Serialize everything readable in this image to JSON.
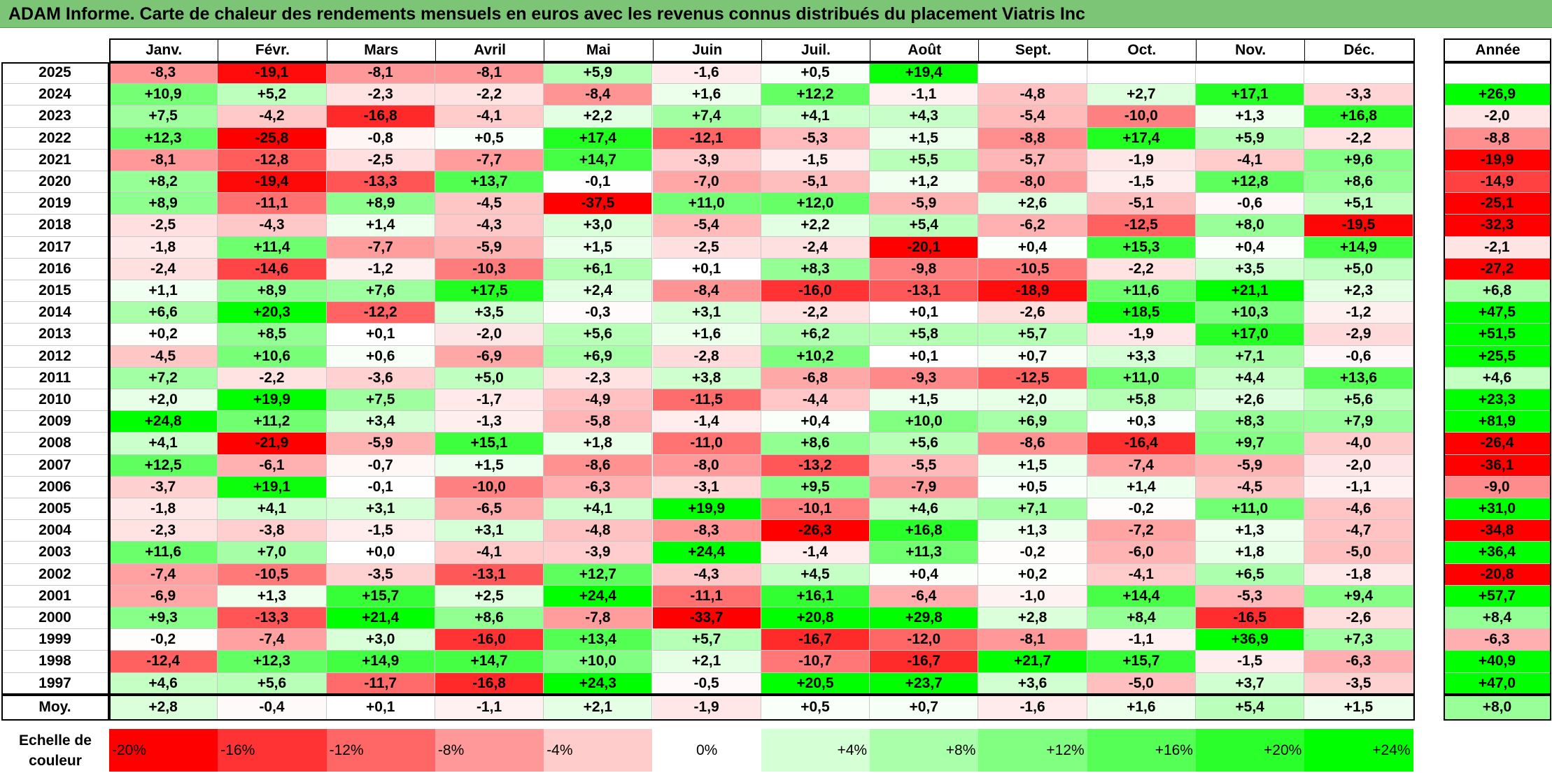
{
  "title": "ADAM Informe. Carte de chaleur des rendements mensuels en euros avec les revenus connus distribués du placement Viatris Inc",
  "chart_data": {
    "type": "heatmap",
    "title": "ADAM Informe. Carte de chaleur des rendements mensuels en euros avec les revenus connus distribués du placement Viatris Inc",
    "months": [
      "Janv.",
      "Févr.",
      "Mars",
      "Avril",
      "Mai",
      "Juin",
      "Juil.",
      "Août",
      "Sept.",
      "Oct.",
      "Nov.",
      "Déc."
    ],
    "year_header": "Année",
    "rows": [
      {
        "year": "2025",
        "values": [
          "-8,3",
          "-19,1",
          "-8,1",
          "-8,1",
          "+5,9",
          "-1,6",
          "+0,5",
          "+19,4",
          "",
          "",
          "",
          ""
        ],
        "annual": ""
      },
      {
        "year": "2024",
        "values": [
          "+10,9",
          "+5,2",
          "-2,3",
          "-2,2",
          "-8,4",
          "+1,6",
          "+12,2",
          "-1,1",
          "-4,8",
          "+2,7",
          "+17,1",
          "-3,3"
        ],
        "annual": "+26,9"
      },
      {
        "year": "2023",
        "values": [
          "+7,5",
          "-4,2",
          "-16,8",
          "-4,1",
          "+2,2",
          "+7,4",
          "+4,1",
          "+4,3",
          "-5,4",
          "-10,0",
          "+1,3",
          "+16,8"
        ],
        "annual": "-2,0"
      },
      {
        "year": "2022",
        "values": [
          "+12,3",
          "-25,8",
          "-0,8",
          "+0,5",
          "+17,4",
          "-12,1",
          "-5,3",
          "+1,5",
          "-8,8",
          "+17,4",
          "+5,9",
          "-2,2"
        ],
        "annual": "-8,8"
      },
      {
        "year": "2021",
        "values": [
          "-8,1",
          "-12,8",
          "-2,5",
          "-7,7",
          "+14,7",
          "-3,9",
          "-1,5",
          "+5,5",
          "-5,7",
          "-1,9",
          "-4,1",
          "+9,6"
        ],
        "annual": "-19,9"
      },
      {
        "year": "2020",
        "values": [
          "+8,2",
          "-19,4",
          "-13,3",
          "+13,7",
          "-0,1",
          "-7,0",
          "-5,1",
          "+1,2",
          "-8,0",
          "-1,5",
          "+12,8",
          "+8,6"
        ],
        "annual": "-14,9"
      },
      {
        "year": "2019",
        "values": [
          "+8,9",
          "-11,1",
          "+8,9",
          "-4,5",
          "-37,5",
          "+11,0",
          "+12,0",
          "-5,9",
          "+2,6",
          "-5,1",
          "-0,6",
          "+5,1"
        ],
        "annual": "-25,1"
      },
      {
        "year": "2018",
        "values": [
          "-2,5",
          "-4,3",
          "+1,4",
          "-4,3",
          "+3,0",
          "-5,4",
          "+2,2",
          "+5,4",
          "-6,2",
          "-12,5",
          "+8,0",
          "-19,5"
        ],
        "annual": "-32,3"
      },
      {
        "year": "2017",
        "values": [
          "-1,8",
          "+11,4",
          "-7,7",
          "-5,9",
          "+1,5",
          "-2,5",
          "-2,4",
          "-20,1",
          "+0,4",
          "+15,3",
          "+0,4",
          "+14,9"
        ],
        "annual": "-2,1"
      },
      {
        "year": "2016",
        "values": [
          "-2,4",
          "-14,6",
          "-1,2",
          "-10,3",
          "+6,1",
          "+0,1",
          "+8,3",
          "-9,8",
          "-10,5",
          "-2,2",
          "+3,5",
          "+5,0"
        ],
        "annual": "-27,2"
      },
      {
        "year": "2015",
        "values": [
          "+1,1",
          "+8,9",
          "+7,6",
          "+17,5",
          "+2,4",
          "-8,4",
          "-16,0",
          "-13,1",
          "-18,9",
          "+11,6",
          "+21,1",
          "+2,3"
        ],
        "annual": "+6,8"
      },
      {
        "year": "2014",
        "values": [
          "+6,6",
          "+20,3",
          "-12,2",
          "+3,5",
          "-0,3",
          "+3,1",
          "-2,2",
          "+0,1",
          "-2,6",
          "+18,5",
          "+10,3",
          "-1,2"
        ],
        "annual": "+47,5"
      },
      {
        "year": "2013",
        "values": [
          "+0,2",
          "+8,5",
          "+0,1",
          "-2,0",
          "+5,6",
          "+1,6",
          "+6,2",
          "+5,8",
          "+5,7",
          "-1,9",
          "+17,0",
          "-2,9"
        ],
        "annual": "+51,5"
      },
      {
        "year": "2012",
        "values": [
          "-4,5",
          "+10,6",
          "+0,6",
          "-6,9",
          "+6,9",
          "-2,8",
          "+10,2",
          "+0,1",
          "+0,7",
          "+3,3",
          "+7,1",
          "-0,6"
        ],
        "annual": "+25,5"
      },
      {
        "year": "2011",
        "values": [
          "+7,2",
          "-2,2",
          "-3,6",
          "+5,0",
          "-2,3",
          "+3,8",
          "-6,8",
          "-9,3",
          "-12,5",
          "+11,0",
          "+4,4",
          "+13,6"
        ],
        "annual": "+4,6"
      },
      {
        "year": "2010",
        "values": [
          "+2,0",
          "+19,9",
          "+7,5",
          "-1,7",
          "-4,9",
          "-11,5",
          "-4,4",
          "+1,5",
          "+2,0",
          "+5,8",
          "+2,6",
          "+5,6"
        ],
        "annual": "+23,3"
      },
      {
        "year": "2009",
        "values": [
          "+24,8",
          "+11,2",
          "+3,4",
          "-1,3",
          "-5,8",
          "-1,4",
          "+0,4",
          "+10,0",
          "+6,9",
          "+0,3",
          "+8,3",
          "+7,9"
        ],
        "annual": "+81,9"
      },
      {
        "year": "2008",
        "values": [
          "+4,1",
          "-21,9",
          "-5,9",
          "+15,1",
          "+1,8",
          "-11,0",
          "+8,6",
          "+5,6",
          "-8,6",
          "-16,4",
          "+9,7",
          "-4,0"
        ],
        "annual": "-26,4"
      },
      {
        "year": "2007",
        "values": [
          "+12,5",
          "-6,1",
          "-0,7",
          "+1,5",
          "-8,6",
          "-8,0",
          "-13,2",
          "-5,5",
          "+1,5",
          "-7,4",
          "-5,9",
          "-2,0"
        ],
        "annual": "-36,1"
      },
      {
        "year": "2006",
        "values": [
          "-3,7",
          "+19,1",
          "-0,1",
          "-10,0",
          "-6,3",
          "-3,1",
          "+9,5",
          "-7,9",
          "+0,5",
          "+1,4",
          "-4,5",
          "-1,1"
        ],
        "annual": "-9,0"
      },
      {
        "year": "2005",
        "values": [
          "-1,8",
          "+4,1",
          "+3,1",
          "-6,5",
          "+4,1",
          "+19,9",
          "-10,1",
          "+4,6",
          "+7,1",
          "-0,2",
          "+11,0",
          "-4,6"
        ],
        "annual": "+31,0"
      },
      {
        "year": "2004",
        "values": [
          "-2,3",
          "-3,8",
          "-1,5",
          "+3,1",
          "-4,8",
          "-8,3",
          "-26,3",
          "+16,8",
          "+1,3",
          "-7,2",
          "+1,3",
          "-4,7"
        ],
        "annual": "-34,8"
      },
      {
        "year": "2003",
        "values": [
          "+11,6",
          "+7,0",
          "+0,0",
          "-4,1",
          "-3,9",
          "+24,4",
          "-1,4",
          "+11,3",
          "-0,2",
          "-6,0",
          "+1,8",
          "-5,0"
        ],
        "annual": "+36,4"
      },
      {
        "year": "2002",
        "values": [
          "-7,4",
          "-10,5",
          "-3,5",
          "-13,1",
          "+12,7",
          "-4,3",
          "+4,5",
          "+0,4",
          "+0,2",
          "-4,1",
          "+6,5",
          "-1,8"
        ],
        "annual": "-20,8"
      },
      {
        "year": "2001",
        "values": [
          "-6,9",
          "+1,3",
          "+15,7",
          "+2,5",
          "+24,4",
          "-11,1",
          "+16,1",
          "-6,4",
          "-1,0",
          "+14,4",
          "-5,3",
          "+9,4"
        ],
        "annual": "+57,7"
      },
      {
        "year": "2000",
        "values": [
          "+9,3",
          "-13,3",
          "+21,4",
          "+8,6",
          "-7,8",
          "-33,7",
          "+20,8",
          "+29,8",
          "+2,8",
          "+8,4",
          "-16,5",
          "-2,6"
        ],
        "annual": "+8,4"
      },
      {
        "year": "1999",
        "values": [
          "-0,2",
          "-7,4",
          "+3,0",
          "-16,0",
          "+13,4",
          "+5,7",
          "-16,7",
          "-12,0",
          "-8,1",
          "-1,1",
          "+36,9",
          "+7,3"
        ],
        "annual": "-6,3"
      },
      {
        "year": "1998",
        "values": [
          "-12,4",
          "+12,3",
          "+14,9",
          "+14,7",
          "+10,0",
          "+2,1",
          "-10,7",
          "-16,7",
          "+21,7",
          "+15,7",
          "-1,5",
          "-6,3"
        ],
        "annual": "+40,9"
      },
      {
        "year": "1997",
        "values": [
          "+4,6",
          "+5,6",
          "-11,7",
          "-16,8",
          "+24,3",
          "-0,5",
          "+20,5",
          "+23,7",
          "+3,6",
          "-5,0",
          "+3,7",
          "-3,5"
        ],
        "annual": "+47,0"
      }
    ],
    "average": {
      "label": "Moy.",
      "values": [
        "+2,8",
        "-0,4",
        "+0,1",
        "-1,1",
        "+2,1",
        "-1,9",
        "+0,5",
        "+0,7",
        "-1,6",
        "+1,6",
        "+5,4",
        "+1,5"
      ],
      "annual": "+8,0"
    },
    "scale": {
      "label_line1": "Echelle de",
      "label_line2": "couleur",
      "stops": [
        {
          "label": "-20%",
          "value": -20,
          "color": "#ff0000"
        },
        {
          "label": "-16%",
          "value": -16,
          "color": "#ff3333"
        },
        {
          "label": "-12%",
          "value": -12,
          "color": "#ff6666"
        },
        {
          "label": "-8%",
          "value": -8,
          "color": "#ff9999"
        },
        {
          "label": "-4%",
          "value": -4,
          "color": "#ffcccc"
        },
        {
          "label": "0%",
          "value": 0,
          "color": "#ffffff"
        },
        {
          "label": "+4%",
          "value": 4,
          "color": "#d5ffd5"
        },
        {
          "label": "+8%",
          "value": 8,
          "color": "#aaffaa"
        },
        {
          "label": "+12%",
          "value": 12,
          "color": "#80ff80"
        },
        {
          "label": "+16%",
          "value": 16,
          "color": "#55ff55"
        },
        {
          "label": "+20%",
          "value": 20,
          "color": "#2bff2b"
        },
        {
          "label": "+24%",
          "value": 24,
          "color": "#00ff00"
        }
      ]
    }
  }
}
